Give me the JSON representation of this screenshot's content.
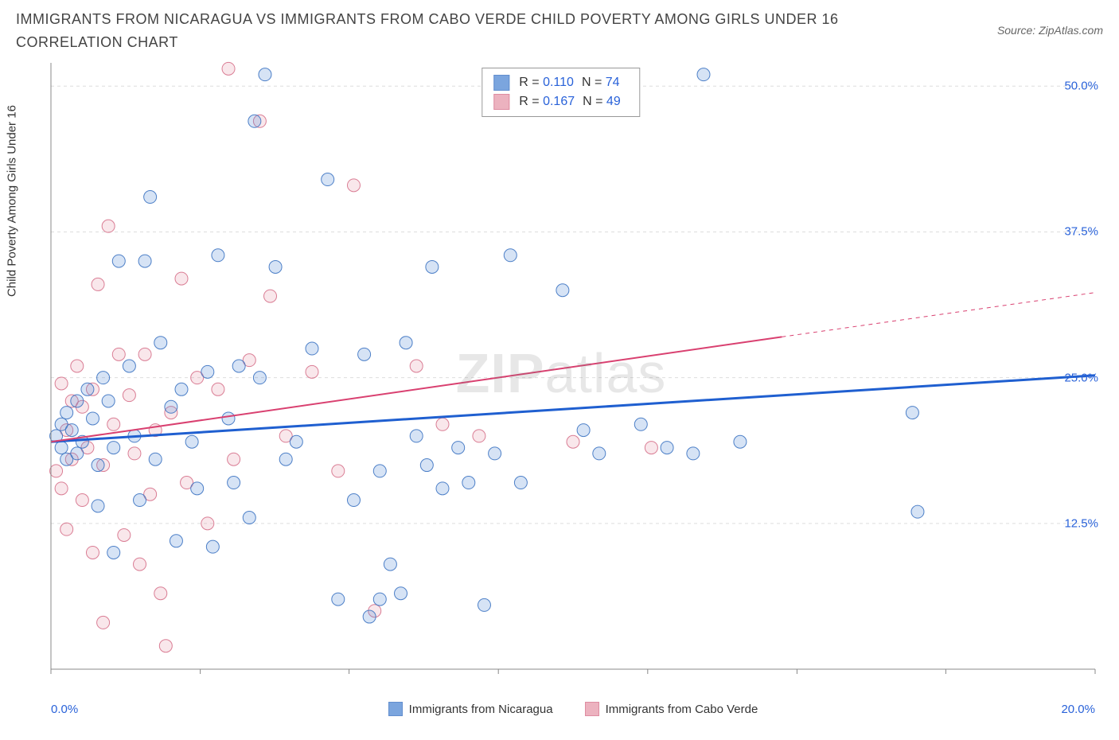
{
  "title": "IMMIGRANTS FROM NICARAGUA VS IMMIGRANTS FROM CABO VERDE CHILD POVERTY AMONG GIRLS UNDER 16 CORRELATION CHART",
  "source": "Source: ZipAtlas.com",
  "ylabel": "Child Poverty Among Girls Under 16",
  "watermark_bold": "ZIP",
  "watermark_rest": "atlas",
  "chart": {
    "type": "scatter",
    "xlim": [
      0,
      20
    ],
    "ylim": [
      0,
      52
    ],
    "x_ticks_shown": [
      "0.0%",
      "20.0%"
    ],
    "x_tick_marks": [
      0,
      2.86,
      5.71,
      8.57,
      11.43,
      14.29,
      17.14,
      20
    ],
    "y_ticks": [
      {
        "v": 12.5,
        "label": "12.5%"
      },
      {
        "v": 25.0,
        "label": "25.0%"
      },
      {
        "v": 37.5,
        "label": "37.5%"
      },
      {
        "v": 50.0,
        "label": "50.0%"
      }
    ],
    "background_color": "#ffffff",
    "grid_color": "#dddddd",
    "axis_color": "#888888",
    "marker_radius": 8,
    "marker_fill_opacity": 0.25,
    "marker_stroke_opacity": 0.9,
    "series": [
      {
        "name": "Immigrants from Nicaragua",
        "color": "#5b8fd6",
        "stroke": "#3c73c2",
        "trend_color": "#1f5fd0",
        "trend_width": 3,
        "R": "0.110",
        "N": "74",
        "trend": {
          "x1": 0,
          "y1": 19.5,
          "x2": 20,
          "y2": 25.2
        },
        "points": [
          [
            0.1,
            20
          ],
          [
            0.2,
            21
          ],
          [
            0.3,
            22
          ],
          [
            0.2,
            19
          ],
          [
            0.3,
            18
          ],
          [
            0.4,
            20.5
          ],
          [
            0.5,
            23
          ],
          [
            0.5,
            18.5
          ],
          [
            0.6,
            19.5
          ],
          [
            0.7,
            24
          ],
          [
            0.8,
            21.5
          ],
          [
            0.9,
            17.5
          ],
          [
            0.9,
            14
          ],
          [
            1.0,
            25
          ],
          [
            1.1,
            23
          ],
          [
            1.2,
            10
          ],
          [
            1.3,
            35
          ],
          [
            1.2,
            19
          ],
          [
            1.5,
            26
          ],
          [
            1.6,
            20
          ],
          [
            1.7,
            14.5
          ],
          [
            1.8,
            35
          ],
          [
            1.9,
            40.5
          ],
          [
            2.0,
            18
          ],
          [
            2.1,
            28
          ],
          [
            2.3,
            22.5
          ],
          [
            2.4,
            11
          ],
          [
            2.5,
            24
          ],
          [
            2.7,
            19.5
          ],
          [
            2.8,
            15.5
          ],
          [
            3.0,
            25.5
          ],
          [
            3.1,
            10.5
          ],
          [
            3.2,
            35.5
          ],
          [
            3.4,
            21.5
          ],
          [
            3.5,
            16
          ],
          [
            3.6,
            26
          ],
          [
            3.8,
            13
          ],
          [
            3.9,
            47
          ],
          [
            4.0,
            25
          ],
          [
            4.1,
            51
          ],
          [
            4.3,
            34.5
          ],
          [
            4.5,
            18
          ],
          [
            4.7,
            19.5
          ],
          [
            5.0,
            27.5
          ],
          [
            5.3,
            42
          ],
          [
            5.5,
            6
          ],
          [
            5.8,
            14.5
          ],
          [
            6.0,
            27
          ],
          [
            6.1,
            4.5
          ],
          [
            6.3,
            17
          ],
          [
            6.5,
            9
          ],
          [
            6.7,
            6.5
          ],
          [
            6.8,
            28
          ],
          [
            7.0,
            20
          ],
          [
            7.2,
            17.5
          ],
          [
            7.3,
            34.5
          ],
          [
            7.5,
            15.5
          ],
          [
            7.8,
            19
          ],
          [
            8.0,
            16
          ],
          [
            8.3,
            5.5
          ],
          [
            8.5,
            18.5
          ],
          [
            8.8,
            35.5
          ],
          [
            9.0,
            16
          ],
          [
            9.8,
            32.5
          ],
          [
            10.2,
            20.5
          ],
          [
            10.5,
            18.5
          ],
          [
            11.3,
            21
          ],
          [
            11.8,
            19
          ],
          [
            12.5,
            51
          ],
          [
            12.3,
            18.5
          ],
          [
            13.2,
            19.5
          ],
          [
            16.5,
            22
          ],
          [
            16.6,
            13.5
          ],
          [
            6.3,
            6
          ]
        ]
      },
      {
        "name": "Immigrants from Cabo Verde",
        "color": "#e8a0b0",
        "stroke": "#d6708a",
        "trend_color": "#d94070",
        "trend_width": 2,
        "R": "0.167",
        "N": "49",
        "trend": {
          "x1": 0,
          "y1": 19.5,
          "x2": 14,
          "y2": 28.5
        },
        "trend_dash": {
          "x1": 14,
          "y1": 28.5,
          "x2": 20,
          "y2": 32.3
        },
        "points": [
          [
            0.1,
            17
          ],
          [
            0.2,
            24.5
          ],
          [
            0.2,
            15.5
          ],
          [
            0.3,
            20.5
          ],
          [
            0.3,
            12
          ],
          [
            0.4,
            23
          ],
          [
            0.4,
            18
          ],
          [
            0.5,
            26
          ],
          [
            0.6,
            14.5
          ],
          [
            0.6,
            22.5
          ],
          [
            0.7,
            19
          ],
          [
            0.8,
            10
          ],
          [
            0.8,
            24
          ],
          [
            0.9,
            33
          ],
          [
            1.0,
            17.5
          ],
          [
            1.0,
            4
          ],
          [
            1.1,
            38
          ],
          [
            1.2,
            21
          ],
          [
            1.3,
            27
          ],
          [
            1.4,
            11.5
          ],
          [
            1.5,
            23.5
          ],
          [
            1.6,
            18.5
          ],
          [
            1.7,
            9
          ],
          [
            1.8,
            27
          ],
          [
            1.9,
            15
          ],
          [
            2.0,
            20.5
          ],
          [
            2.1,
            6.5
          ],
          [
            2.3,
            22
          ],
          [
            2.5,
            33.5
          ],
          [
            2.6,
            16
          ],
          [
            2.8,
            25
          ],
          [
            3.0,
            12.5
          ],
          [
            3.2,
            24
          ],
          [
            3.4,
            51.5
          ],
          [
            3.5,
            18
          ],
          [
            3.8,
            26.5
          ],
          [
            4.0,
            47
          ],
          [
            4.2,
            32
          ],
          [
            4.5,
            20
          ],
          [
            5.0,
            25.5
          ],
          [
            5.5,
            17
          ],
          [
            5.8,
            41.5
          ],
          [
            6.2,
            5
          ],
          [
            7.0,
            26
          ],
          [
            7.5,
            21
          ],
          [
            8.2,
            20
          ],
          [
            10.0,
            19.5
          ],
          [
            11.5,
            19
          ],
          [
            2.2,
            2
          ]
        ]
      }
    ]
  },
  "bottom_legend": {
    "s1": "Immigrants from Nicaragua",
    "s2": "Immigrants from Cabo Verde"
  }
}
